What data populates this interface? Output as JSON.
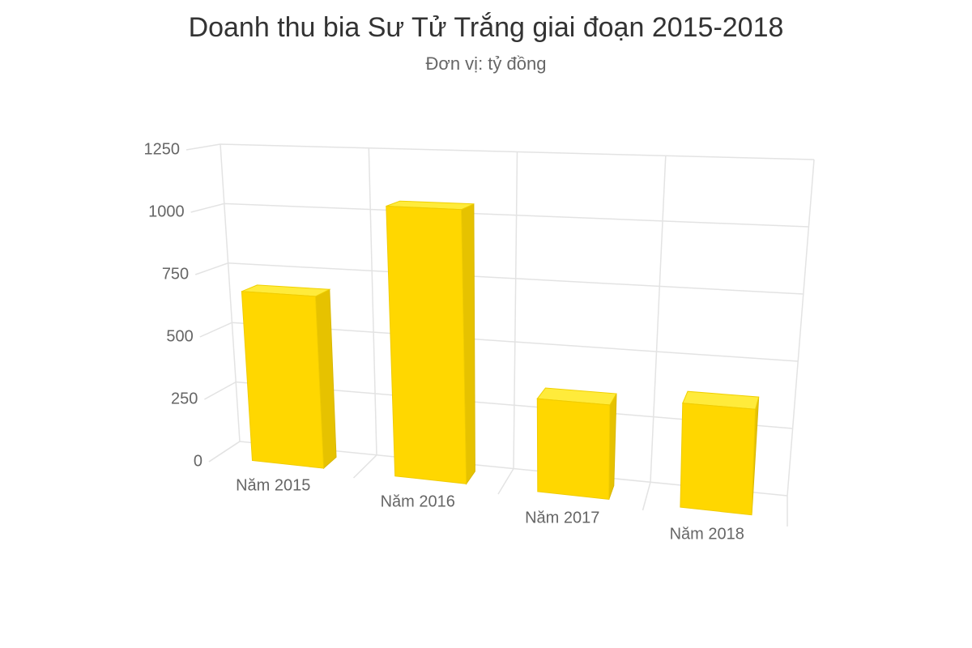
{
  "chart_data": {
    "type": "bar3d",
    "title": "Doanh thu bia Sư Tử Trắng giai đoạn 2015-2018",
    "subtitle": "Đơn vị: tỷ đồng",
    "categories": [
      "Năm 2015",
      "Năm 2016",
      "Năm 2017",
      "Năm 2018"
    ],
    "values": [
      680,
      1050,
      350,
      380
    ],
    "color": "#ffd700",
    "ylim": [
      0,
      1250
    ],
    "yticks": [
      0,
      250,
      500,
      750,
      1000,
      1250
    ],
    "grid": true
  }
}
